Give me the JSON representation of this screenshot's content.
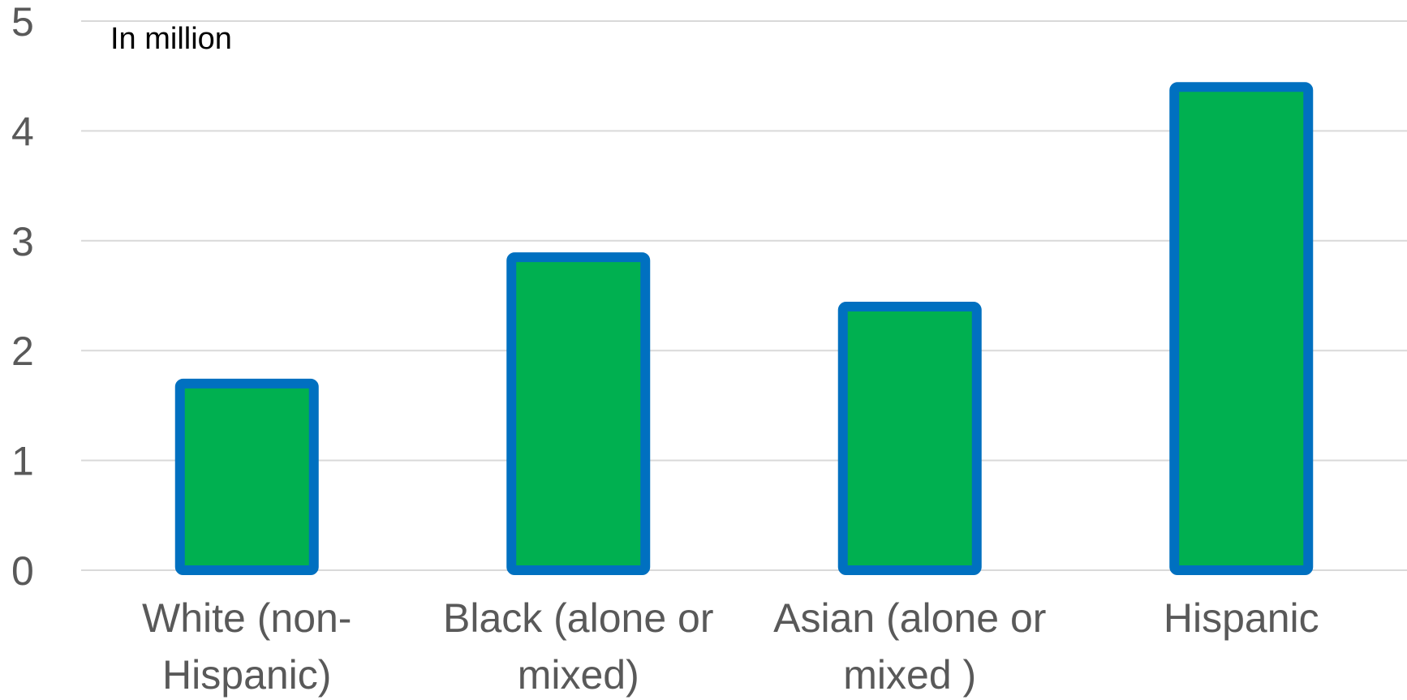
{
  "chart_data": {
    "type": "bar",
    "title": "",
    "annotation": "In million",
    "categories": [
      [
        "White (non-",
        "Hispanic)"
      ],
      [
        "Black (alone or",
        "mixed)"
      ],
      [
        "Asian (alone or",
        "mixed )"
      ],
      [
        "Hispanic"
      ]
    ],
    "values": [
      1.7,
      2.85,
      2.4,
      4.4
    ],
    "ylim": [
      0,
      5
    ],
    "yticks": [
      0,
      1,
      2,
      3,
      4,
      5
    ],
    "grid": true,
    "legend": "none",
    "colors": {
      "bar_fill": "#00b050",
      "bar_outline": "#0070c0",
      "gridline": "#d9d9d9",
      "tick_text": "#595959",
      "annotation_text": "#000000"
    }
  }
}
